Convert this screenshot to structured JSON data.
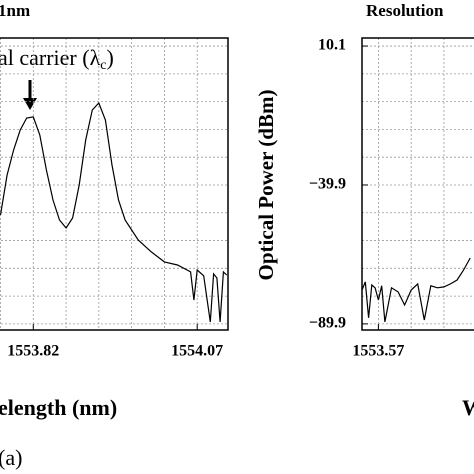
{
  "chart_data": [
    {
      "type": "line",
      "title": "1nm",
      "annotation": {
        "text": "al carrier (λ",
        "sub": "c",
        "end": ")"
      },
      "x_label": "elength (nm)",
      "panel_label": "(a)",
      "xlim": [
        1553.545,
        1554.117
      ],
      "ylim": [
        -92.1,
        13.0
      ],
      "xticks": [
        1553.82,
        1554.07
      ],
      "xgrid": [
        1553.57,
        1553.62,
        1553.67,
        1553.72,
        1553.77,
        1553.82,
        1553.87,
        1553.92,
        1553.97,
        1554.02,
        1554.07
      ],
      "ygrid": [
        10.1,
        0.1,
        -9.9,
        -19.9,
        -29.9,
        -39.9,
        -49.9,
        -59.9,
        -69.9,
        -79.9,
        -89.9
      ],
      "series": [
        {
          "color": "#000000",
          "x": [
            1553.77,
            1553.775,
            1553.78,
            1553.79,
            1553.8,
            1553.81,
            1553.82,
            1553.83,
            1553.84,
            1553.85,
            1553.86,
            1553.87,
            1553.88,
            1553.89,
            1553.9,
            1553.91,
            1553.92,
            1553.93,
            1553.94,
            1553.95,
            1553.96,
            1553.98,
            1554.0,
            1554.02,
            1554.04,
            1554.06,
            1554.065,
            1554.07,
            1554.08,
            1554.09,
            1554.095,
            1554.1,
            1554.105,
            1554.11,
            1554.115
          ],
          "values": [
            -50.7,
            -43.5,
            -36.3,
            -27.3,
            -20.1,
            -15.8,
            -15.4,
            -21.9,
            -34.5,
            -45.3,
            -52.5,
            -55.4,
            -51.8,
            -39.9,
            -23.7,
            -12.9,
            -10.4,
            -16.5,
            -32.7,
            -45.3,
            -52.5,
            -59.7,
            -64.0,
            -67.6,
            -68.7,
            -71.2,
            -81.3,
            -70.5,
            -72.6,
            -89.2,
            -71.9,
            -73.4,
            -89.2,
            -71.2,
            -72.3
          ]
        }
      ]
    },
    {
      "type": "line",
      "title": "Resolution",
      "y_label": "Optical Power (dBm)",
      "x_label": "W",
      "xlim": [
        1553.545,
        1554.117
      ],
      "ylim": [
        -92.1,
        13.0
      ],
      "xticks": [
        1553.57
      ],
      "yticks": [
        10.1,
        {
          "value": -39.9,
          "label": "−39.9"
        },
        {
          "value": -89.9,
          "label": "−89.9"
        }
      ],
      "xgrid": [
        1553.57,
        1553.62,
        1553.67,
        1553.72
      ],
      "ygrid": [
        10.1,
        0.1,
        -9.9,
        -19.9,
        -29.9,
        -39.9,
        -49.9,
        -59.9,
        -69.9,
        -79.9,
        -89.9
      ],
      "series": [
        {
          "color": "#000000",
          "x": [
            1553.545,
            1553.55,
            1553.555,
            1553.56,
            1553.565,
            1553.57,
            1553.575,
            1553.58,
            1553.59,
            1553.6,
            1553.61,
            1553.62,
            1553.63,
            1553.64,
            1553.65,
            1553.66,
            1553.67,
            1553.68,
            1553.69,
            1553.7,
            1553.71
          ],
          "values": [
            -77.7,
            -74.8,
            -87.7,
            -75.9,
            -76.9,
            -81.3,
            -76.2,
            -89.2,
            -76.9,
            -78.4,
            -83.1,
            -77.7,
            -75.5,
            -88.5,
            -76.2,
            -76.9,
            -76.6,
            -75.5,
            -74.1,
            -70.5,
            -66.2
          ]
        }
      ]
    }
  ]
}
